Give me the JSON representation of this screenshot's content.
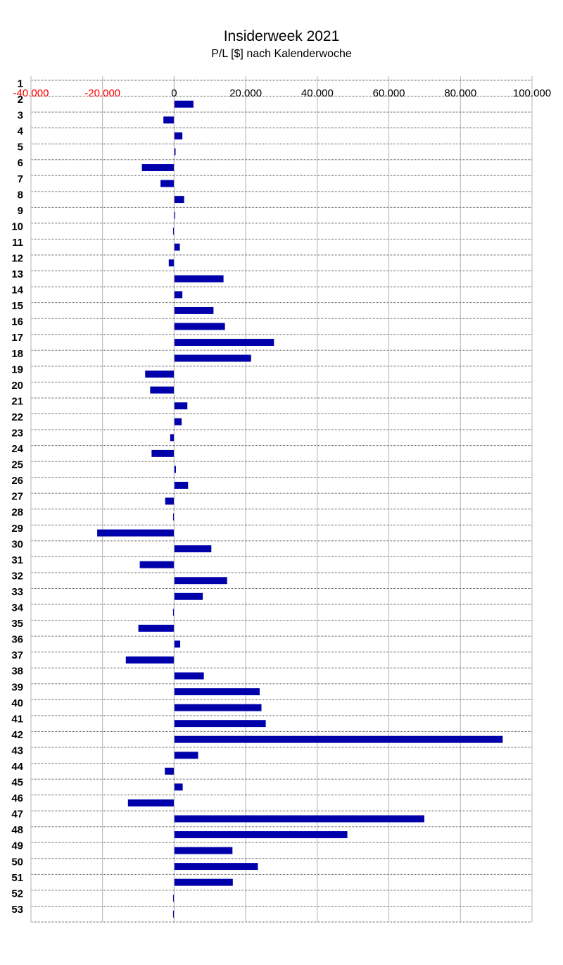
{
  "chart_data": {
    "type": "bar",
    "orientation": "horizontal",
    "title": "Insiderweek 2021",
    "subtitle": "P/L [$] nach Kalenderwoche",
    "xlabel": "",
    "ylabel": "",
    "xlim": [
      -40000,
      100000
    ],
    "x_tick_values": [
      -40000,
      -20000,
      0,
      20000,
      40000,
      60000,
      80000,
      100000
    ],
    "x_tick_labels": [
      "-40.000",
      "-20.000",
      "0",
      "20.000",
      "40.000",
      "60.000",
      "80.000",
      "100.000"
    ],
    "negative_tick_color": "#ff0000",
    "bar_color": "#0000aa",
    "grid": true,
    "legend": "none",
    "categories": [
      "1",
      "2",
      "3",
      "4",
      "5",
      "6",
      "7",
      "8",
      "9",
      "10",
      "11",
      "12",
      "13",
      "14",
      "15",
      "16",
      "17",
      "18",
      "19",
      "20",
      "21",
      "22",
      "23",
      "24",
      "25",
      "26",
      "27",
      "28",
      "29",
      "30",
      "31",
      "32",
      "33",
      "34",
      "35",
      "36",
      "37",
      "38",
      "39",
      "40",
      "41",
      "42",
      "43",
      "44",
      "45",
      "46",
      "47",
      "48",
      "49",
      "50",
      "51",
      "52",
      "53"
    ],
    "values": [
      0,
      5400,
      -3000,
      2300,
      400,
      -9000,
      -3800,
      2800,
      300,
      -200,
      1600,
      -1500,
      13800,
      2300,
      11000,
      14200,
      27900,
      21500,
      -8100,
      -6700,
      3700,
      2100,
      -1100,
      -6300,
      500,
      3900,
      -2500,
      -200,
      -21500,
      10400,
      -9600,
      14800,
      8000,
      -300,
      -10000,
      1700,
      -13500,
      8300,
      23900,
      24400,
      25600,
      91800,
      6700,
      -2600,
      2400,
      -12900,
      69900,
      48400,
      16300,
      23400,
      16400,
      -200,
      -300
    ]
  }
}
